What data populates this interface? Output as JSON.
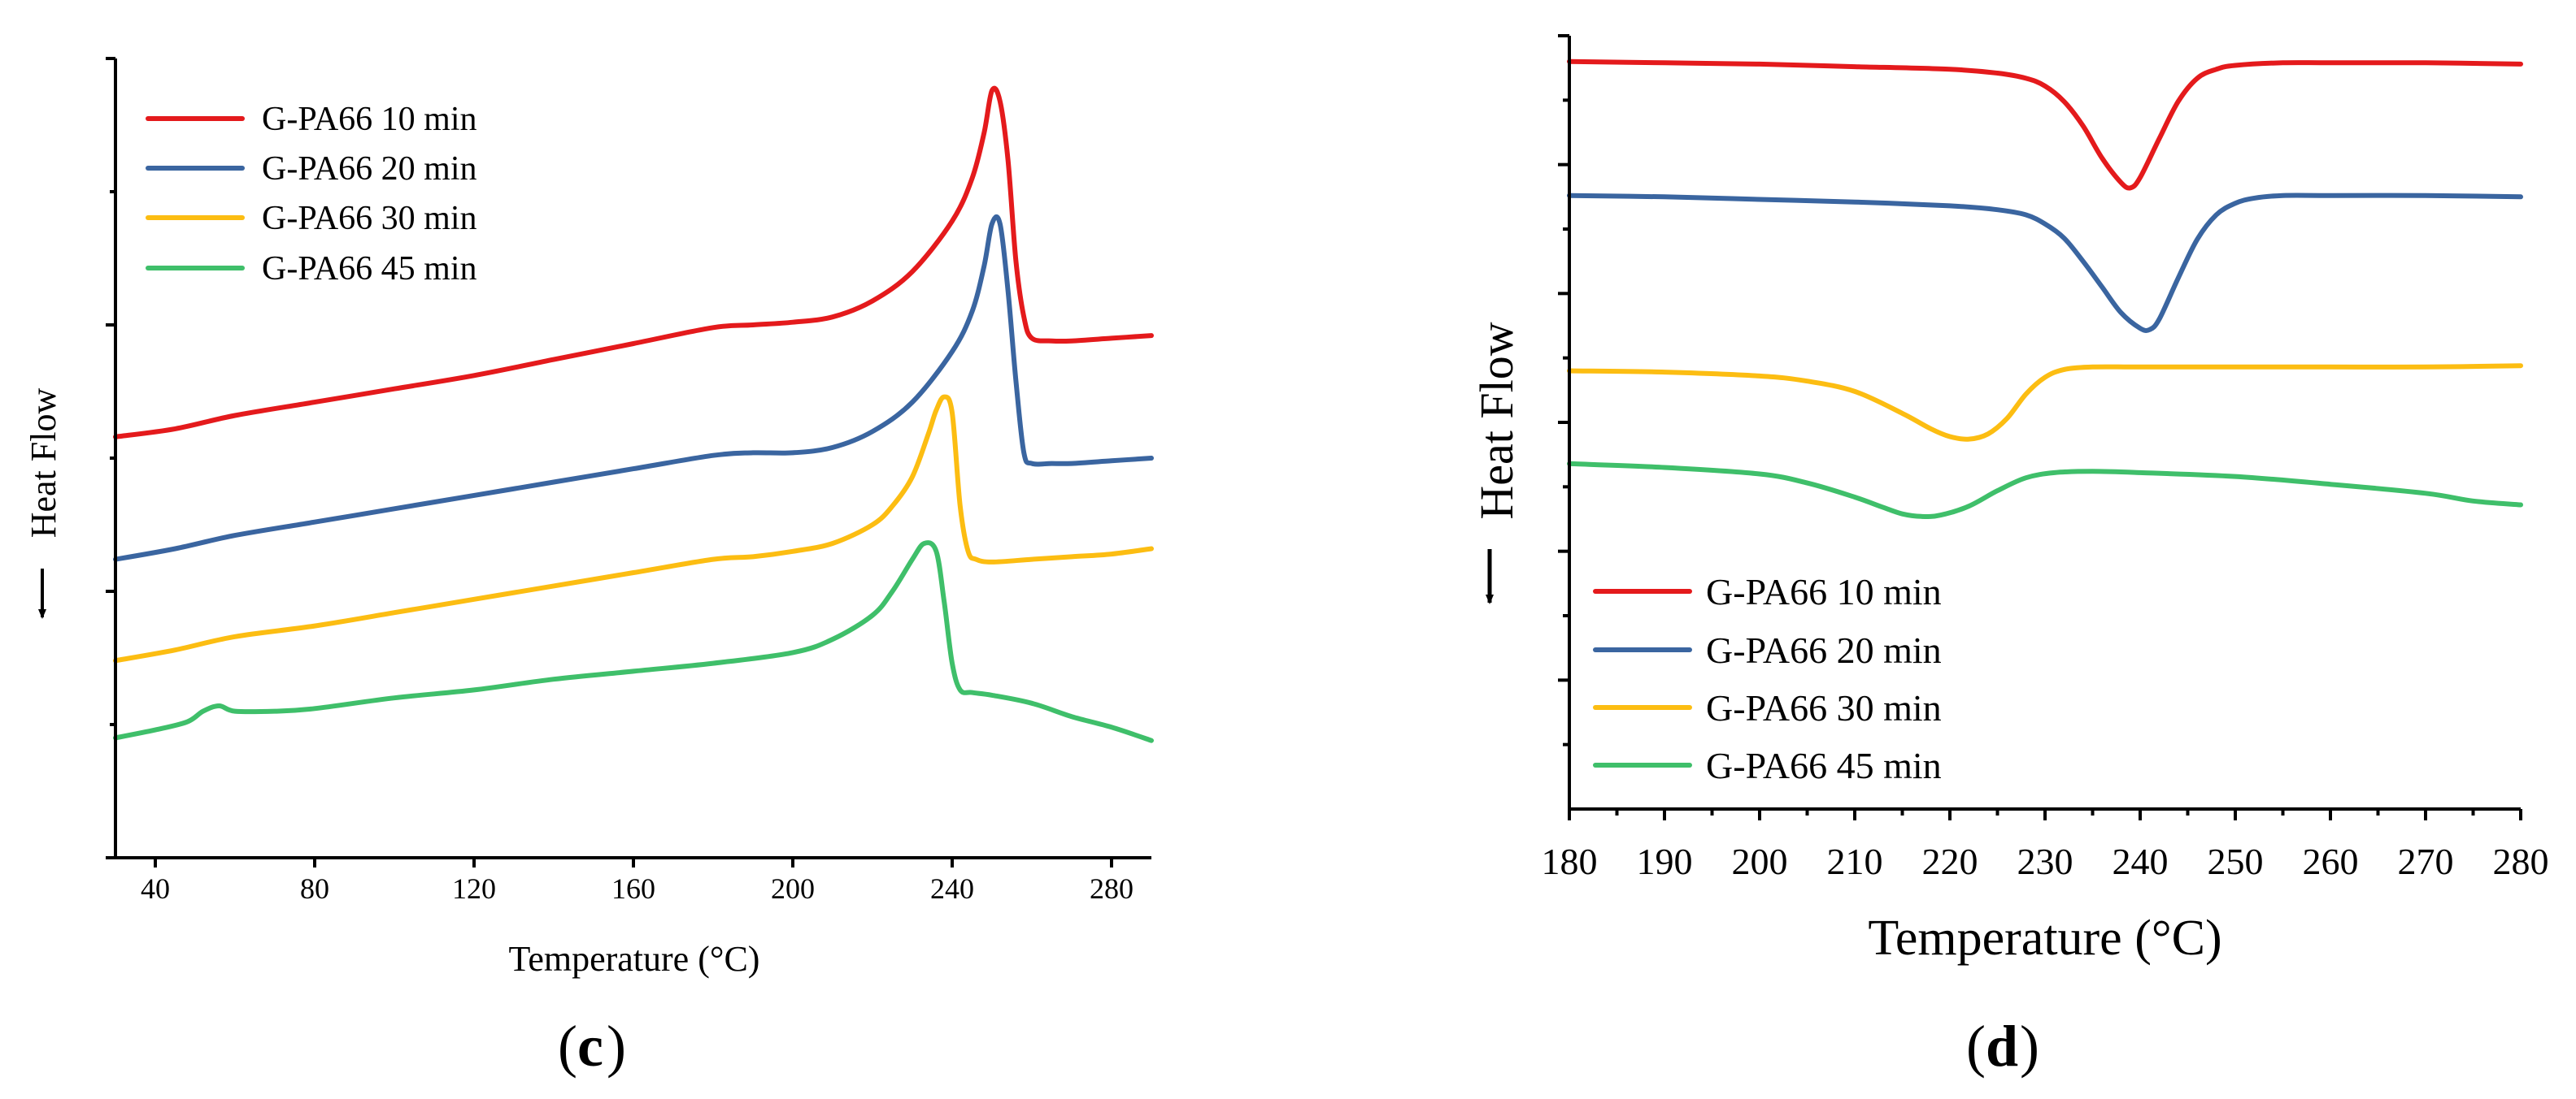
{
  "chart_data": [
    {
      "type": "line",
      "panel_label": "c",
      "title": "",
      "xlabel": "Temperature (°C)",
      "ylabel": "Heat Flow",
      "xlim": [
        30,
        290
      ],
      "ylim": [
        0,
        300
      ],
      "xticks": [
        40,
        80,
        120,
        160,
        200,
        240,
        280
      ],
      "y_major_ticks": [
        0,
        100,
        200,
        300
      ],
      "y_minor_ticks": [
        50,
        150,
        250
      ],
      "yticklabels_visible": false,
      "arrow_direction": "down",
      "legend_position": "top-left",
      "grid": false,
      "series": [
        {
          "name": "G-PA66 10 min",
          "color": "#e41a1c",
          "x": [
            30,
            45,
            60,
            80,
            100,
            120,
            140,
            160,
            180,
            190,
            200,
            210,
            220,
            230,
            240,
            245,
            248,
            250,
            252,
            254,
            256,
            258,
            260,
            265,
            270,
            280,
            290
          ],
          "y": [
            158,
            161,
            166,
            171,
            176,
            181,
            187,
            193,
            199,
            200,
            201,
            203,
            209,
            220,
            239,
            255,
            272,
            288,
            284,
            262,
            224,
            203,
            195,
            194,
            194,
            195,
            196
          ]
        },
        {
          "name": "G-PA66 20 min",
          "color": "#3a65a0",
          "x": [
            30,
            45,
            60,
            80,
            100,
            120,
            140,
            160,
            180,
            190,
            200,
            210,
            220,
            230,
            240,
            245,
            248,
            250,
            252,
            254,
            256,
            258,
            260,
            265,
            270,
            280,
            290
          ],
          "y": [
            112,
            116,
            121,
            126,
            131,
            136,
            141,
            146,
            151,
            152,
            152,
            154,
            160,
            171,
            190,
            205,
            222,
            238,
            238,
            213,
            179,
            152,
            148,
            148,
            148,
            149,
            150
          ]
        },
        {
          "name": "G-PA66 30 min",
          "color": "#fcbd12",
          "x": [
            30,
            45,
            60,
            80,
            100,
            120,
            140,
            160,
            180,
            190,
            200,
            210,
            220,
            225,
            230,
            234,
            236,
            238,
            240,
            242,
            244,
            246,
            250,
            260,
            270,
            280,
            290
          ],
          "y": [
            74,
            78,
            83,
            87,
            92,
            97,
            102,
            107,
            112,
            113,
            115,
            118,
            125,
            132,
            143,
            159,
            168,
            173,
            167,
            132,
            115,
            112,
            111,
            112,
            113,
            114,
            116
          ]
        },
        {
          "name": "G-PA66 45 min",
          "color": "#3fbf6a",
          "x": [
            30,
            40,
            48,
            52,
            56,
            60,
            70,
            80,
            100,
            120,
            140,
            160,
            180,
            200,
            210,
            220,
            225,
            230,
            233,
            236,
            238,
            240,
            242,
            245,
            250,
            260,
            270,
            280,
            290
          ],
          "y": [
            45,
            48,
            51,
            55,
            57,
            55,
            55,
            56,
            60,
            63,
            67,
            70,
            73,
            77,
            82,
            91,
            100,
            112,
            118,
            115,
            96,
            73,
            63,
            62,
            61,
            58,
            53,
            49,
            44
          ]
        }
      ]
    },
    {
      "type": "line",
      "panel_label": "d",
      "title": "",
      "xlabel": "Temperature (°C)",
      "ylabel": "Heat Flow",
      "xlim": [
        180,
        280
      ],
      "ylim": [
        0,
        600
      ],
      "xticks": [
        180,
        190,
        200,
        210,
        220,
        230,
        240,
        250,
        260,
        270,
        280
      ],
      "y_major_ticks": [
        100,
        200,
        300,
        400,
        500,
        600
      ],
      "y_minor_ticks": [
        50,
        150,
        250,
        350,
        450,
        550
      ],
      "yticklabels_visible": false,
      "arrow_direction": "down",
      "legend_position": "bottom-left",
      "grid": false,
      "series": [
        {
          "name": "G-PA66 10 min",
          "color": "#e41a1c",
          "x": [
            180,
            190,
            200,
            210,
            220,
            225,
            228,
            230,
            232,
            234,
            236,
            238,
            239,
            240,
            242,
            244,
            246,
            248,
            250,
            255,
            260,
            270,
            280
          ],
          "y": [
            580,
            579,
            578,
            576,
            574,
            571,
            567,
            561,
            549,
            530,
            505,
            486,
            482,
            490,
            520,
            549,
            567,
            574,
            577,
            579,
            579,
            579,
            578
          ]
        },
        {
          "name": "G-PA66 20 min",
          "color": "#3a65a0",
          "x": [
            180,
            190,
            200,
            210,
            220,
            225,
            228,
            230,
            232,
            234,
            236,
            238,
            240,
            241,
            242,
            244,
            246,
            248,
            250,
            252,
            255,
            260,
            270,
            280
          ],
          "y": [
            476,
            475,
            473,
            471,
            468,
            465,
            461,
            454,
            443,
            425,
            405,
            385,
            373,
            372,
            380,
            412,
            442,
            461,
            470,
            474,
            476,
            476,
            476,
            475
          ]
        },
        {
          "name": "G-PA66 30 min",
          "color": "#fcbd12",
          "x": [
            180,
            190,
            200,
            205,
            210,
            215,
            218,
            220,
            222,
            224,
            226,
            228,
            230,
            232,
            235,
            240,
            250,
            260,
            270,
            280
          ],
          "y": [
            340,
            339,
            336,
            332,
            324,
            307,
            295,
            289,
            287,
            291,
            303,
            322,
            335,
            341,
            343,
            343,
            343,
            343,
            343,
            344
          ]
        },
        {
          "name": "G-PA66 45 min",
          "color": "#3fbf6a",
          "x": [
            180,
            190,
            200,
            205,
            210,
            213,
            215,
            217,
            219,
            222,
            225,
            228,
            231,
            235,
            240,
            250,
            260,
            270,
            275,
            280
          ],
          "y": [
            268,
            265,
            260,
            253,
            242,
            234,
            229,
            227,
            228,
            235,
            247,
            257,
            261,
            262,
            261,
            258,
            252,
            245,
            239,
            236
          ]
        }
      ]
    }
  ]
}
